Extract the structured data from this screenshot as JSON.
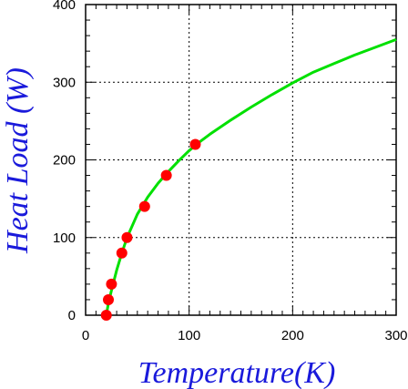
{
  "chart_data": {
    "type": "scatter",
    "title": "",
    "xlabel": "Temperature(K)",
    "ylabel": "Heat Load (W)",
    "xlim": [
      0,
      300
    ],
    "ylim": [
      0,
      400
    ],
    "x_ticks": [
      0,
      100,
      200,
      300
    ],
    "y_ticks": [
      0,
      100,
      200,
      300,
      400
    ],
    "grid": true,
    "series": [
      {
        "kind": "points",
        "color": "#ff0000",
        "x": [
          20,
          22,
          25,
          35,
          40,
          57,
          78,
          106
        ],
        "y": [
          0,
          20,
          40,
          80,
          100,
          140,
          180,
          220
        ]
      },
      {
        "kind": "fit-curve",
        "color": "#00e000",
        "x": [
          20,
          22,
          25,
          30,
          35,
          40,
          50,
          60,
          70,
          80,
          90,
          100,
          110,
          120,
          140,
          160,
          180,
          200,
          220,
          240,
          260,
          280,
          300
        ],
        "y": [
          0,
          15,
          32,
          58,
          80,
          100,
          130,
          152,
          170,
          185,
          199,
          212,
          223,
          233,
          251,
          268,
          284,
          299,
          313,
          324,
          335,
          345,
          355
        ]
      }
    ]
  }
}
